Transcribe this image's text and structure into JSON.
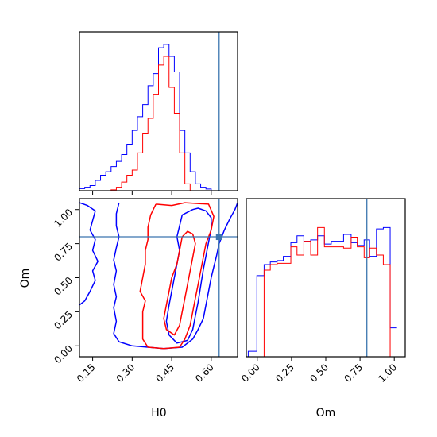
{
  "chart_data": {
    "type": "corner",
    "parameters": [
      "H0",
      "Om"
    ],
    "truth": {
      "H0": 0.63,
      "Om": 0.8,
      "color": "#3b75af"
    },
    "series_colors": {
      "blue": "#0000ff",
      "red": "#ff0000"
    },
    "axes": {
      "H0": {
        "label": "H0",
        "range": [
          0.1,
          0.7
        ],
        "ticks": [
          0.15,
          0.3,
          0.45,
          0.6
        ],
        "tick_labels": [
          "0.15",
          "0.30",
          "0.45",
          "0.60"
        ]
      },
      "Om": {
        "label": "Om",
        "range": [
          -0.08,
          1.08
        ],
        "ticks": [
          0.0,
          0.25,
          0.5,
          0.75,
          1.0
        ],
        "tick_labels": [
          "0.00",
          "0.25",
          "0.50",
          "0.75",
          "1.00"
        ]
      }
    },
    "hist_H0": {
      "bin_start": 0.1,
      "bin_width": 0.02,
      "blue": [
        0.012,
        0.02,
        0.03,
        0.06,
        0.09,
        0.11,
        0.14,
        0.17,
        0.21,
        0.27,
        0.35,
        0.43,
        0.5,
        0.61,
        0.68,
        0.83,
        0.85,
        0.78,
        0.69,
        0.35,
        0.22,
        0.11,
        0.04,
        0.02,
        0.01,
        0.0,
        0.0,
        0.0,
        0.0,
        0.0
      ],
      "red": [
        0.0,
        0.0,
        0.0,
        0.0,
        0.0,
        0.0,
        0.005,
        0.02,
        0.05,
        0.09,
        0.12,
        0.22,
        0.33,
        0.42,
        0.56,
        0.73,
        0.78,
        0.6,
        0.45,
        0.22,
        0.04,
        0.0,
        0.0,
        0.0,
        0.0,
        0.0,
        0.0,
        0.0,
        0.0,
        0.0
      ]
    },
    "hist_Om": {
      "bin_edges": [
        -0.066,
        -0.003,
        0.05,
        0.095,
        0.145,
        0.19,
        0.245,
        0.29,
        0.34,
        0.39,
        0.44,
        0.49,
        0.54,
        0.585,
        0.63,
        0.685,
        0.73,
        0.78,
        0.82,
        0.87,
        0.92,
        0.97,
        1.02,
        1.07
      ],
      "blue": [
        0.04,
        0.59,
        0.67,
        0.69,
        0.7,
        0.73,
        0.83,
        0.88,
        0.84,
        0.85,
        0.88,
        0.82,
        0.84,
        0.84,
        0.89,
        0.83,
        0.81,
        0.85,
        0.73,
        0.93,
        0.94,
        0.21
      ],
      "red": [
        0.0,
        0.0,
        0.63,
        0.67,
        0.68,
        0.68,
        0.8,
        0.74,
        0.84,
        0.74,
        0.94,
        0.8,
        0.8,
        0.8,
        0.79,
        0.87,
        0.8,
        0.72,
        0.79,
        0.74,
        0.67,
        0.0
      ]
    },
    "contours_2d": [
      {
        "color": "blue",
        "level": "outer",
        "points": [
          [
            0.25,
            1.05
          ],
          [
            0.24,
            0.97
          ],
          [
            0.24,
            0.88
          ],
          [
            0.25,
            0.8
          ],
          [
            0.24,
            0.72
          ],
          [
            0.23,
            0.63
          ],
          [
            0.24,
            0.55
          ],
          [
            0.23,
            0.45
          ],
          [
            0.24,
            0.36
          ],
          [
            0.23,
            0.28
          ],
          [
            0.24,
            0.18
          ],
          [
            0.23,
            0.09
          ],
          [
            0.25,
            0.03
          ],
          [
            0.3,
            0.0
          ],
          [
            0.36,
            -0.01
          ],
          [
            0.42,
            -0.02
          ],
          [
            0.49,
            -0.01
          ],
          [
            0.53,
            0.05
          ],
          [
            0.55,
            0.12
          ],
          [
            0.57,
            0.2
          ],
          [
            0.58,
            0.3
          ],
          [
            0.59,
            0.4
          ],
          [
            0.6,
            0.5
          ],
          [
            0.61,
            0.58
          ],
          [
            0.62,
            0.66
          ],
          [
            0.63,
            0.75
          ],
          [
            0.65,
            0.85
          ],
          [
            0.67,
            0.93
          ],
          [
            0.69,
            1.0
          ],
          [
            0.7,
            1.05
          ]
        ]
      },
      {
        "color": "blue",
        "level": "outer-left",
        "points": [
          [
            0.1,
            1.05
          ],
          [
            0.13,
            1.03
          ],
          [
            0.16,
            0.99
          ],
          [
            0.15,
            0.92
          ],
          [
            0.14,
            0.85
          ],
          [
            0.16,
            0.78
          ],
          [
            0.15,
            0.7
          ],
          [
            0.17,
            0.62
          ],
          [
            0.15,
            0.55
          ],
          [
            0.16,
            0.48
          ],
          [
            0.14,
            0.4
          ],
          [
            0.12,
            0.33
          ],
          [
            0.1,
            0.3
          ]
        ]
      },
      {
        "color": "blue",
        "level": "inner",
        "points": [
          [
            0.53,
            1.0
          ],
          [
            0.49,
            0.96
          ],
          [
            0.48,
            0.88
          ],
          [
            0.47,
            0.8
          ],
          [
            0.48,
            0.7
          ],
          [
            0.47,
            0.6
          ],
          [
            0.46,
            0.5
          ],
          [
            0.45,
            0.4
          ],
          [
            0.44,
            0.3
          ],
          [
            0.43,
            0.18
          ],
          [
            0.44,
            0.08
          ],
          [
            0.47,
            0.02
          ],
          [
            0.51,
            0.04
          ],
          [
            0.53,
            0.12
          ],
          [
            0.54,
            0.22
          ],
          [
            0.55,
            0.32
          ],
          [
            0.56,
            0.44
          ],
          [
            0.57,
            0.56
          ],
          [
            0.58,
            0.66
          ],
          [
            0.59,
            0.76
          ],
          [
            0.6,
            0.86
          ],
          [
            0.6,
            0.94
          ],
          [
            0.58,
            0.99
          ],
          [
            0.55,
            1.01
          ],
          [
            0.53,
            1.0
          ]
        ]
      },
      {
        "color": "red",
        "level": "outer",
        "points": [
          [
            0.39,
            1.04
          ],
          [
            0.37,
            0.96
          ],
          [
            0.36,
            0.87
          ],
          [
            0.36,
            0.78
          ],
          [
            0.35,
            0.7
          ],
          [
            0.35,
            0.6
          ],
          [
            0.34,
            0.5
          ],
          [
            0.33,
            0.4
          ],
          [
            0.35,
            0.33
          ],
          [
            0.34,
            0.25
          ],
          [
            0.34,
            0.15
          ],
          [
            0.34,
            0.05
          ],
          [
            0.36,
            -0.01
          ],
          [
            0.42,
            -0.02
          ],
          [
            0.48,
            -0.01
          ],
          [
            0.5,
            0.05
          ],
          [
            0.52,
            0.15
          ],
          [
            0.53,
            0.25
          ],
          [
            0.54,
            0.35
          ],
          [
            0.55,
            0.45
          ],
          [
            0.56,
            0.55
          ],
          [
            0.57,
            0.65
          ],
          [
            0.58,
            0.75
          ],
          [
            0.6,
            0.85
          ],
          [
            0.61,
            0.95
          ],
          [
            0.59,
            1.04
          ],
          [
            0.5,
            1.05
          ],
          [
            0.45,
            1.03
          ],
          [
            0.39,
            1.04
          ]
        ]
      },
      {
        "color": "red",
        "level": "inner",
        "points": [
          [
            0.49,
            0.8
          ],
          [
            0.48,
            0.7
          ],
          [
            0.47,
            0.6
          ],
          [
            0.45,
            0.5
          ],
          [
            0.44,
            0.4
          ],
          [
            0.43,
            0.3
          ],
          [
            0.42,
            0.2
          ],
          [
            0.43,
            0.12
          ],
          [
            0.46,
            0.08
          ],
          [
            0.48,
            0.15
          ],
          [
            0.49,
            0.25
          ],
          [
            0.5,
            0.35
          ],
          [
            0.51,
            0.45
          ],
          [
            0.52,
            0.55
          ],
          [
            0.53,
            0.65
          ],
          [
            0.54,
            0.75
          ],
          [
            0.53,
            0.82
          ],
          [
            0.51,
            0.84
          ],
          [
            0.49,
            0.8
          ]
        ]
      }
    ]
  }
}
